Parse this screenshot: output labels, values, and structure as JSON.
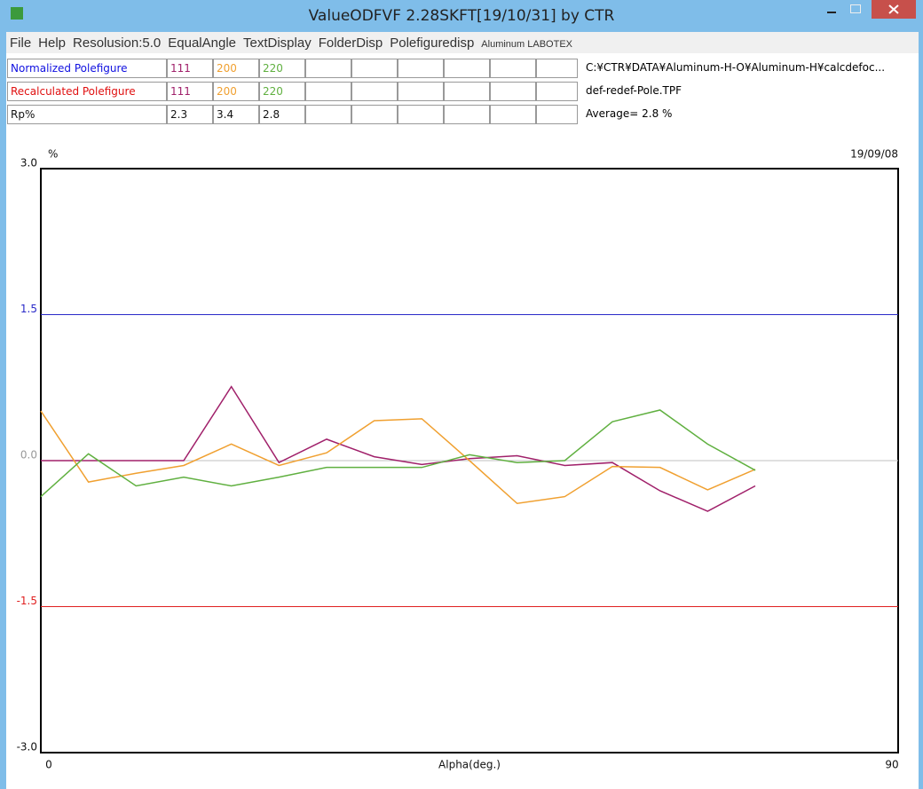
{
  "window": {
    "title": "ValueODFVF 2.28SKFT[19/10/31] by CTR"
  },
  "menu": [
    "File",
    "Help",
    "Resolusion:5.0",
    "EqualAngle",
    "TextDisplay",
    "FolderDisp",
    "Polefiguredisp"
  ],
  "menu_note": "Aluminum LABOTEX",
  "table": {
    "rows": [
      {
        "label": "Normalized Polefigure",
        "cells": [
          "111",
          "200",
          "220"
        ],
        "info": "C:¥CTR¥DATA¥Aluminum-H-O¥Aluminum-H¥calcdefoc..."
      },
      {
        "label": "Recalculated Polefigure",
        "cells": [
          "111",
          "200",
          "220"
        ],
        "info": "def-redef-Pole.TPF"
      },
      {
        "label": "Rp%",
        "cells": [
          2.3,
          3.4,
          2.8
        ],
        "info": "Average= 2.8 %"
      }
    ]
  },
  "chart_data": {
    "type": "line",
    "y_unit": "%",
    "date": "19/09/08",
    "x_label": "Alpha(deg.)",
    "x": [
      0,
      5,
      10,
      15,
      20,
      25,
      30,
      35,
      40,
      45,
      50,
      55,
      60,
      65,
      70,
      75
    ],
    "series": [
      {
        "color": "#a0206a",
        "values": [
          0,
          0,
          0,
          0,
          0.76,
          -0.02,
          0.22,
          0.04,
          -0.04,
          0.02,
          0.05,
          -0.05,
          -0.02,
          -0.31,
          -0.52,
          -0.26
        ]
      },
      {
        "color": "#f0a030",
        "values": [
          0.51,
          -0.22,
          -0.13,
          -0.05,
          0.17,
          -0.05,
          0.08,
          0.41,
          0.43,
          0,
          -0.44,
          -0.37,
          -0.06,
          -0.07,
          -0.3,
          -0.09
        ]
      },
      {
        "color": "#60b040",
        "values": [
          -0.37,
          0.07,
          -0.26,
          -0.17,
          -0.26,
          -0.17,
          -0.07,
          -0.07,
          -0.07,
          0.06,
          -0.02,
          0,
          0.4,
          0.52,
          0.17,
          -0.1
        ]
      }
    ],
    "xlim": [
      0,
      90
    ],
    "xticks": [
      0,
      90
    ],
    "ylim": [
      -3,
      3
    ],
    "yticks": [
      {
        "value": 3,
        "label": "3.0"
      },
      {
        "value": 1.5,
        "label": "1.5"
      },
      {
        "value": 0,
        "label": "0.0"
      },
      {
        "value": -1.5,
        "label": "-1.5"
      },
      {
        "value": -3,
        "label": "-3.0"
      }
    ],
    "reference_lines": [
      {
        "y": 1.5,
        "color": "#2a2ac8"
      },
      {
        "y": 0,
        "color": "#c0c0c0"
      },
      {
        "y": -1.5,
        "color": "#e02020"
      }
    ]
  }
}
